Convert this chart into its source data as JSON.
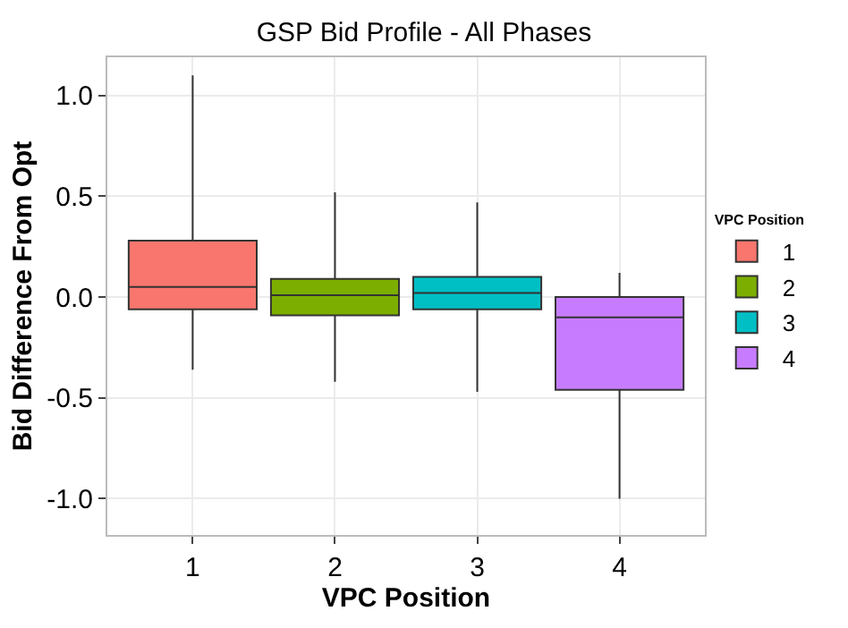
{
  "chart_data": {
    "type": "box",
    "title": "GSP Bid Profile - All Phases",
    "xlabel": "VPC Position",
    "ylabel": "Bid Difference From Opt",
    "legend_title": "VPC Position",
    "categories": [
      "1",
      "2",
      "3",
      "4"
    ],
    "series": [
      {
        "name": "1",
        "color": "#f8766d",
        "boxes": [
          {
            "low": -0.36,
            "q1": -0.06,
            "median": 0.05,
            "q3": 0.28,
            "high": 1.1
          },
          null,
          null,
          null
        ]
      },
      {
        "name": "2",
        "color": "#7cae00",
        "boxes": [
          null,
          {
            "low": -0.42,
            "q1": -0.09,
            "median": 0.01,
            "q3": 0.09,
            "high": 0.52
          },
          null,
          null
        ]
      },
      {
        "name": "3",
        "color": "#00bfc4",
        "boxes": [
          null,
          null,
          {
            "low": -0.47,
            "q1": -0.06,
            "median": 0.02,
            "q3": 0.1,
            "high": 0.47
          },
          null
        ]
      },
      {
        "name": "4",
        "color": "#c77cff",
        "boxes": [
          null,
          null,
          null,
          {
            "low": -1.0,
            "q1": -0.46,
            "median": -0.1,
            "q3": 0.0,
            "high": 0.12
          }
        ]
      }
    ],
    "ylim": [
      -1.18,
      1.19
    ],
    "yticks": [
      {
        "value": -1.0,
        "label": "-1.0"
      },
      {
        "value": -0.5,
        "label": "-0.5"
      },
      {
        "value": 0.0,
        "label": "0.0"
      },
      {
        "value": 0.5,
        "label": "0.5"
      },
      {
        "value": 1.0,
        "label": "1.0"
      }
    ],
    "grid": true,
    "legend": "right"
  }
}
